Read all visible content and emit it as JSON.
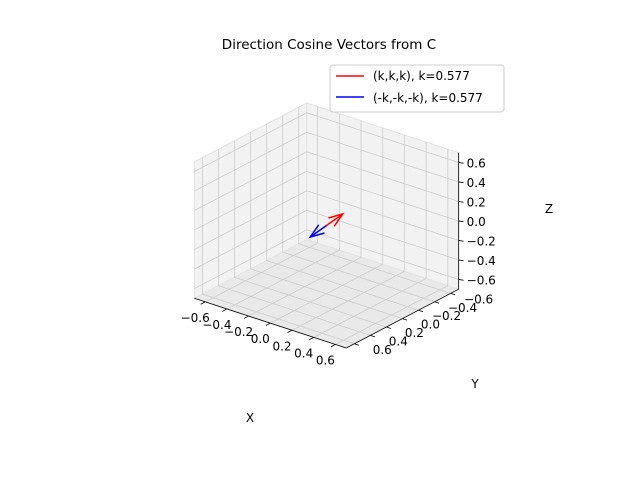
{
  "chart_data": {
    "type": "line",
    "projection": "3d",
    "title": "Direction Cosine Vectors from C",
    "xlabel": "X",
    "ylabel": "Y",
    "zlabel": "Z",
    "xlim": [
      -0.7,
      0.7
    ],
    "ylim": [
      -0.7,
      0.7
    ],
    "zlim": [
      -0.7,
      0.7
    ],
    "xticks": [
      "−0.6",
      "−0.4",
      "−0.2",
      "0.0",
      "0.2",
      "0.4",
      "0.6"
    ],
    "yticks": [
      "−0.6",
      "−0.4",
      "−0.2",
      "0.0",
      "0.2",
      "0.4",
      "0.6"
    ],
    "zticks": [
      "−0.6",
      "−0.4",
      "−0.2",
      "0.0",
      "0.2",
      "0.4",
      "0.6"
    ],
    "tick_values": [
      -0.6,
      -0.4,
      -0.2,
      0.0,
      0.2,
      0.4,
      0.6
    ],
    "grid": true,
    "legend_position": "top-right",
    "series": [
      {
        "name": "(k,k,k), k=0.577",
        "color": "#ff0000",
        "start": [
          0,
          0,
          0
        ],
        "end": [
          0.577,
          0.577,
          0.577
        ],
        "arrowhead": true
      },
      {
        "name": "(-k,-k,-k), k=0.577",
        "color": "#0000ff",
        "start": [
          0,
          0,
          0
        ],
        "end": [
          -0.577,
          -0.577,
          -0.577
        ],
        "arrowhead": true
      }
    ]
  }
}
